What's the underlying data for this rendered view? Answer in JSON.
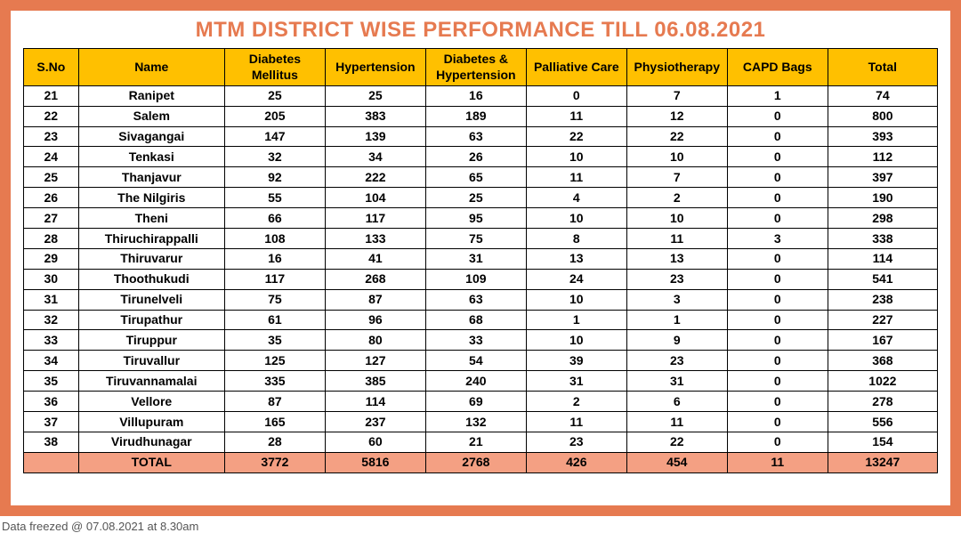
{
  "title": {
    "text": "MTM DISTRICT WISE PERFORMANCE TILL 06.08.2021",
    "color": "#e67a50",
    "fontsize": 24
  },
  "frame_color": "#e67a50",
  "header_bg": "#ffc000",
  "total_row_bg": "#f4a083",
  "columns": [
    "S.No",
    "Name",
    "Diabetes Mellitus",
    "Hypertension",
    "Diabetes & Hypertension",
    "Palliative Care",
    "Physiotherapy",
    "CAPD Bags",
    "Total"
  ],
  "rows": [
    [
      "21",
      "Ranipet",
      "25",
      "25",
      "16",
      "0",
      "7",
      "1",
      "74"
    ],
    [
      "22",
      "Salem",
      "205",
      "383",
      "189",
      "11",
      "12",
      "0",
      "800"
    ],
    [
      "23",
      "Sivagangai",
      "147",
      "139",
      "63",
      "22",
      "22",
      "0",
      "393"
    ],
    [
      "24",
      "Tenkasi",
      "32",
      "34",
      "26",
      "10",
      "10",
      "0",
      "112"
    ],
    [
      "25",
      "Thanjavur",
      "92",
      "222",
      "65",
      "11",
      "7",
      "0",
      "397"
    ],
    [
      "26",
      "The Nilgiris",
      "55",
      "104",
      "25",
      "4",
      "2",
      "0",
      "190"
    ],
    [
      "27",
      "Theni",
      "66",
      "117",
      "95",
      "10",
      "10",
      "0",
      "298"
    ],
    [
      "28",
      "Thiruchirappalli",
      "108",
      "133",
      "75",
      "8",
      "11",
      "3",
      "338"
    ],
    [
      "29",
      "Thiruvarur",
      "16",
      "41",
      "31",
      "13",
      "13",
      "0",
      "114"
    ],
    [
      "30",
      "Thoothukudi",
      "117",
      "268",
      "109",
      "24",
      "23",
      "0",
      "541"
    ],
    [
      "31",
      "Tirunelveli",
      "75",
      "87",
      "63",
      "10",
      "3",
      "0",
      "238"
    ],
    [
      "32",
      "Tirupathur",
      "61",
      "96",
      "68",
      "1",
      "1",
      "0",
      "227"
    ],
    [
      "33",
      "Tiruppur",
      "35",
      "80",
      "33",
      "10",
      "9",
      "0",
      "167"
    ],
    [
      "34",
      "Tiruvallur",
      "125",
      "127",
      "54",
      "39",
      "23",
      "0",
      "368"
    ],
    [
      "35",
      "Tiruvannamalai",
      "335",
      "385",
      "240",
      "31",
      "31",
      "0",
      "1022"
    ],
    [
      "36",
      "Vellore",
      "87",
      "114",
      "69",
      "2",
      "6",
      "0",
      "278"
    ],
    [
      "37",
      "Villupuram",
      "165",
      "237",
      "132",
      "11",
      "11",
      "0",
      "556"
    ],
    [
      "38",
      "Virudhunagar",
      "28",
      "60",
      "21",
      "23",
      "22",
      "0",
      "154"
    ]
  ],
  "total_row": [
    "",
    "TOTAL",
    "3772",
    "5816",
    "2768",
    "426",
    "454",
    "11",
    "13247"
  ],
  "footer_note": "Data freezed @ 07.08.2021 at 8.30am"
}
